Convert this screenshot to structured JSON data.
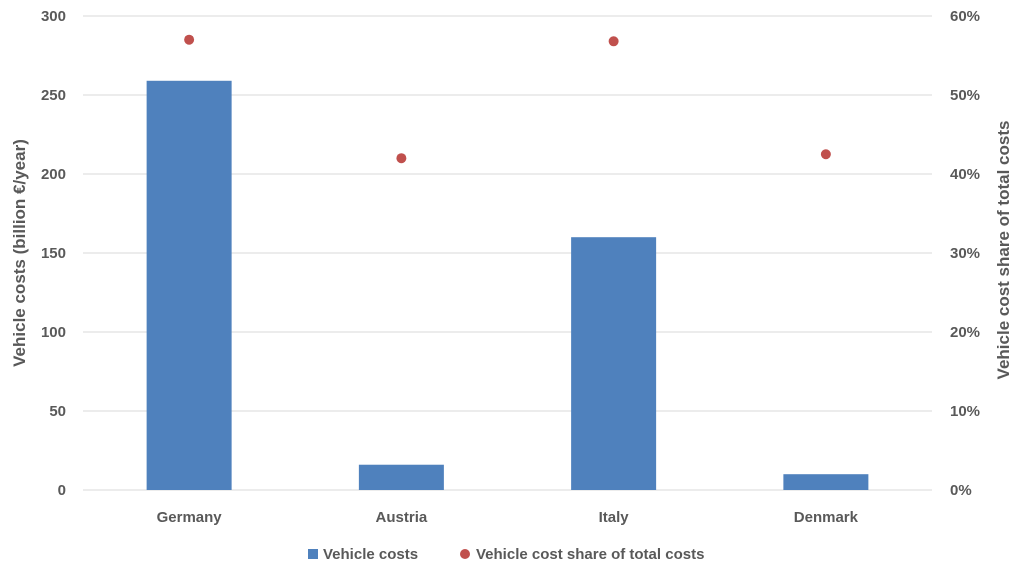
{
  "chart_data": {
    "type": "bar",
    "categories": [
      "Germany",
      "Austria",
      "Italy",
      "Denmark"
    ],
    "series": [
      {
        "name": "Vehicle costs",
        "type": "bar",
        "axis": "left",
        "color": "#4f81bd",
        "values": [
          259,
          16,
          160,
          10
        ]
      },
      {
        "name": "Vehicle cost share of total costs",
        "type": "scatter",
        "axis": "right",
        "color": "#c0504d",
        "values": [
          0.57,
          0.42,
          0.568,
          0.425
        ]
      }
    ],
    "ylabel": "Vehicle costs (billion €/year)",
    "y2label": "Vehicle cost share of total costs",
    "ylim": [
      0,
      300
    ],
    "y2lim": [
      0,
      0.6
    ],
    "yticks": [
      "0",
      "50",
      "100",
      "150",
      "200",
      "250",
      "300"
    ],
    "y2ticks": [
      "0%",
      "10%",
      "20%",
      "30%",
      "40%",
      "50%",
      "60%"
    ],
    "grid": true,
    "legend": "bottom-center"
  }
}
